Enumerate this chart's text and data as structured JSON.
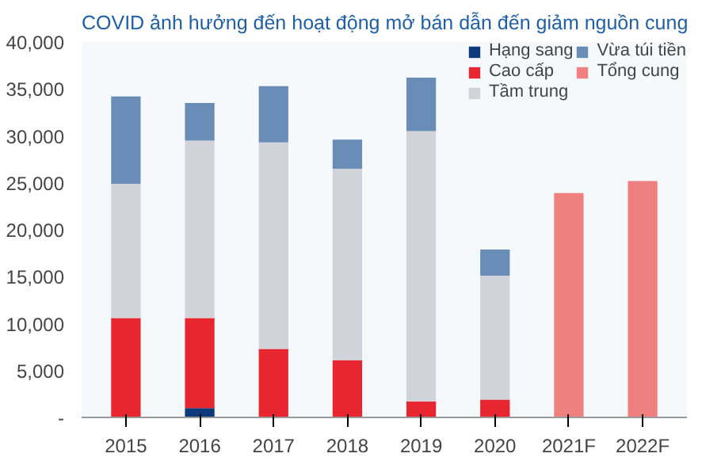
{
  "chart_data": {
    "type": "bar",
    "stacked": true,
    "title": "COVID ảnh hưởng đến hoạt động mở bán dẫn đến giảm nguồn cung",
    "categories": [
      "2015",
      "2016",
      "2017",
      "2018",
      "2019",
      "2020",
      "2021F",
      "2022F"
    ],
    "series": [
      {
        "name": "Hạng sang",
        "color": "#0d3a7a",
        "values": [
          null,
          1000,
          null,
          null,
          null,
          null,
          null,
          null
        ]
      },
      {
        "name": "Cao cấp",
        "color": "#e8262f",
        "values": [
          10600,
          9600,
          7300,
          6100,
          1700,
          1900,
          null,
          null
        ]
      },
      {
        "name": "Tầm trung",
        "color": "#d0d3da",
        "values": [
          14300,
          18900,
          22000,
          20400,
          28800,
          13200,
          null,
          null
        ]
      },
      {
        "name": "Vừa túi tiền",
        "color": "#6a8db8",
        "values": [
          9300,
          4000,
          6000,
          3100,
          5700,
          2800,
          null,
          null
        ]
      },
      {
        "name": "Tổng cung",
        "color": "#f08080",
        "values": [
          null,
          null,
          null,
          null,
          null,
          null,
          23900,
          25200
        ]
      }
    ],
    "ylim": [
      0,
      40000
    ],
    "yticks": [
      {
        "value": 0,
        "label": "-"
      },
      {
        "value": 5000,
        "label": "5,000"
      },
      {
        "value": 10000,
        "label": "10,000"
      },
      {
        "value": 15000,
        "label": "15,000"
      },
      {
        "value": 20000,
        "label": "20,000"
      },
      {
        "value": 25000,
        "label": "25,000"
      },
      {
        "value": 30000,
        "label": "30,000"
      },
      {
        "value": 35000,
        "label": "35,000"
      },
      {
        "value": 40000,
        "label": "40,000"
      }
    ],
    "grid": false,
    "legend": "top"
  }
}
